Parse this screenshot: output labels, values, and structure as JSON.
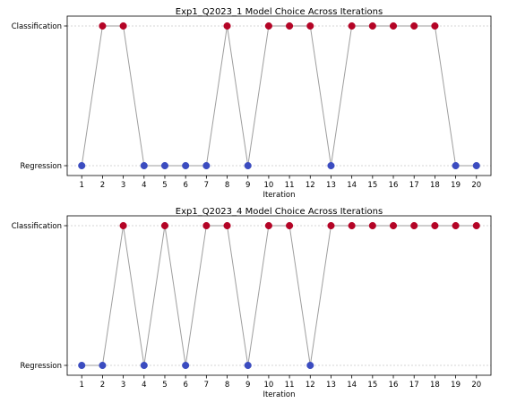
{
  "chart_data": [
    {
      "type": "line",
      "title": "Exp1_Q2023_1 Model Choice Across Iterations",
      "xlabel": "Iteration",
      "ylabel": "",
      "y_categories": [
        "Regression",
        "Classification"
      ],
      "x": [
        1,
        2,
        3,
        4,
        5,
        6,
        7,
        8,
        9,
        10,
        11,
        12,
        13,
        14,
        15,
        16,
        17,
        18,
        19,
        20
      ],
      "values": [
        "Regression",
        "Classification",
        "Classification",
        "Regression",
        "Regression",
        "Regression",
        "Regression",
        "Classification",
        "Regression",
        "Classification",
        "Classification",
        "Classification",
        "Regression",
        "Classification",
        "Classification",
        "Classification",
        "Classification",
        "Classification",
        "Regression",
        "Regression"
      ],
      "grid": "horizontal dotted",
      "line_color": "#9e9e9e",
      "marker_colors": {
        "Regression": "#3b4cc0",
        "Classification": "#b40426"
      }
    },
    {
      "type": "line",
      "title": "Exp1_Q2023_4 Model Choice Across Iterations",
      "xlabel": "Iteration",
      "ylabel": "",
      "y_categories": [
        "Regression",
        "Classification"
      ],
      "x": [
        1,
        2,
        3,
        4,
        5,
        6,
        7,
        8,
        9,
        10,
        11,
        12,
        13,
        14,
        15,
        16,
        17,
        18,
        19,
        20
      ],
      "values": [
        "Regression",
        "Regression",
        "Classification",
        "Regression",
        "Classification",
        "Regression",
        "Classification",
        "Classification",
        "Regression",
        "Classification",
        "Classification",
        "Regression",
        "Classification",
        "Classification",
        "Classification",
        "Classification",
        "Classification",
        "Classification",
        "Classification",
        "Classification"
      ],
      "extra_segment_note": "",
      "grid": "horizontal dotted",
      "line_color": "#9e9e9e",
      "marker_colors": {
        "Regression": "#3b4cc0",
        "Classification": "#b40426"
      }
    }
  ]
}
